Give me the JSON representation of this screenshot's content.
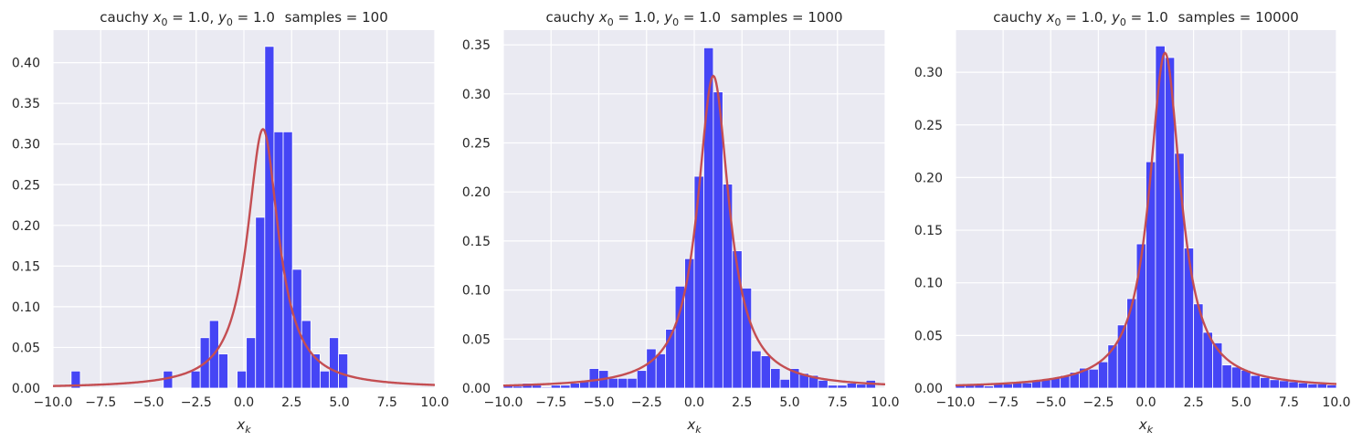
{
  "chart_data": [
    {
      "type": "bar",
      "title_text": "cauchy",
      "title_samples": "samples = 100",
      "x0_text": "1.0",
      "y0_text": "1.0",
      "xlabel_base": "x",
      "xlabel_sub": "k",
      "xlim": [
        -10,
        10
      ],
      "ylim": [
        0,
        0.44
      ],
      "xticks": [
        -10,
        -7.5,
        -5,
        -2.5,
        0,
        2.5,
        5,
        7.5,
        10
      ],
      "xtick_labels": [
        "−10.0",
        "−7.5",
        "−5.0",
        "−2.5",
        "0.0",
        "2.5",
        "5.0",
        "7.5",
        "10.0"
      ],
      "yticks": [
        0,
        0.05,
        0.1,
        0.15,
        0.2,
        0.25,
        0.3,
        0.35,
        0.4
      ],
      "ytick_labels": [
        "0.00",
        "0.05",
        "0.10",
        "0.15",
        "0.20",
        "0.25",
        "0.30",
        "0.35",
        "0.40"
      ],
      "histogram": {
        "bin_start": -9.05,
        "bin_width": 0.483,
        "values": [
          0.021,
          0,
          0,
          0,
          0,
          0,
          0,
          0,
          0,
          0,
          0.021,
          0,
          0,
          0.021,
          0.062,
          0.083,
          0.042,
          0,
          0.021,
          0.062,
          0.21,
          0.42,
          0.315,
          0.315,
          0.146,
          0.083,
          0.042,
          0.021,
          0.062,
          0.042
        ]
      },
      "curve": {
        "type": "cauchy pdf",
        "x0": 1.0,
        "gamma": 1.0,
        "peak": 0.318
      },
      "grid": true,
      "bar_color": "#4545f5",
      "curve_color": "#c44e52",
      "background": "#eaeaf2"
    },
    {
      "type": "bar",
      "title_text": "cauchy",
      "title_samples": "samples = 1000",
      "x0_text": "1.0",
      "y0_text": "1.0",
      "xlabel_base": "x",
      "xlabel_sub": "k",
      "xlim": [
        -10,
        10
      ],
      "ylim": [
        0,
        0.365
      ],
      "xticks": [
        -10,
        -7.5,
        -5,
        -2.5,
        0,
        2.5,
        5,
        7.5,
        10
      ],
      "xtick_labels": [
        "−10.0",
        "−7.5",
        "−5.0",
        "−2.5",
        "0.0",
        "2.5",
        "5.0",
        "7.5",
        "10.0"
      ],
      "yticks": [
        0,
        0.05,
        0.1,
        0.15,
        0.2,
        0.25,
        0.3,
        0.35
      ],
      "ytick_labels": [
        "0.00",
        "0.05",
        "0.10",
        "0.15",
        "0.20",
        "0.25",
        "0.30",
        "0.35"
      ],
      "histogram": {
        "bin_start": -10,
        "bin_width": 0.5,
        "values": [
          0.004,
          0.002,
          0.005,
          0.003,
          0.001,
          0.003,
          0.003,
          0.005,
          0.007,
          0.02,
          0.018,
          0.01,
          0.01,
          0.01,
          0.018,
          0.04,
          0.035,
          0.06,
          0.104,
          0.132,
          0.216,
          0.347,
          0.302,
          0.208,
          0.14,
          0.102,
          0.038,
          0.033,
          0.02,
          0.009,
          0.02,
          0.015,
          0.013,
          0.008,
          0.003,
          0.003,
          0.005,
          0.004,
          0.008
        ]
      },
      "curve": {
        "type": "cauchy pdf",
        "x0": 1.0,
        "gamma": 1.0,
        "peak": 0.318
      },
      "grid": true,
      "bar_color": "#4545f5",
      "curve_color": "#c44e52",
      "background": "#eaeaf2"
    },
    {
      "type": "bar",
      "title_text": "cauchy",
      "title_samples": "samples = 10000",
      "x0_text": "1.0",
      "y0_text": "1.0",
      "xlabel_base": "x",
      "xlabel_sub": "k",
      "xlim": [
        -10,
        10
      ],
      "ylim": [
        0,
        0.34
      ],
      "xticks": [
        -10,
        -7.5,
        -5,
        -2.5,
        0,
        2.5,
        5,
        7.5,
        10
      ],
      "xtick_labels": [
        "−10.0",
        "−7.5",
        "−5.0",
        "−2.5",
        "0.0",
        "2.5",
        "5.0",
        "7.5",
        "10.0"
      ],
      "yticks": [
        0,
        0.05,
        0.1,
        0.15,
        0.2,
        0.25,
        0.3
      ],
      "ytick_labels": [
        "0.00",
        "0.05",
        "0.10",
        "0.15",
        "0.20",
        "0.25",
        "0.30"
      ],
      "histogram": {
        "bin_start": -10,
        "bin_width": 0.5,
        "values": [
          0.003,
          0.003,
          0.004,
          0.002,
          0.004,
          0.004,
          0.005,
          0.005,
          0.007,
          0.008,
          0.01,
          0.012,
          0.015,
          0.019,
          0.018,
          0.025,
          0.041,
          0.06,
          0.085,
          0.137,
          0.215,
          0.325,
          0.314,
          0.223,
          0.133,
          0.08,
          0.053,
          0.043,
          0.022,
          0.02,
          0.017,
          0.012,
          0.01,
          0.008,
          0.007,
          0.006,
          0.005,
          0.004,
          0.004,
          0.003
        ]
      },
      "curve": {
        "type": "cauchy pdf",
        "x0": 1.0,
        "gamma": 1.0,
        "peak": 0.318
      },
      "grid": true,
      "bar_color": "#4545f5",
      "curve_color": "#c44e52",
      "background": "#eaeaf2"
    }
  ]
}
